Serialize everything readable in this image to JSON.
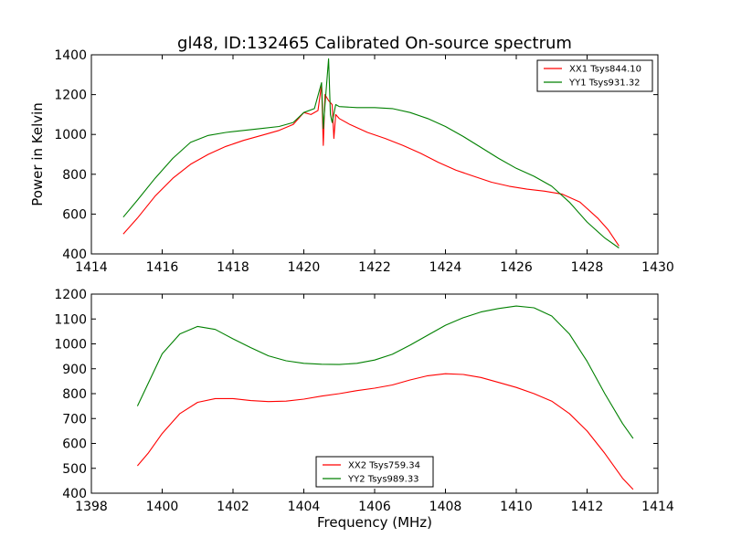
{
  "title": "gl48, ID:132465 Calibrated On-source spectrum",
  "colors": {
    "red": "#ff0000",
    "green": "#008000",
    "axes": "#000000",
    "background": "#ffffff"
  },
  "chart_data": [
    {
      "type": "line",
      "title": "gl48, ID:132465 Calibrated On-source spectrum",
      "xlabel": "",
      "ylabel": "Power in Kelvin",
      "xlim": [
        1414,
        1430
      ],
      "ylim": [
        400,
        1400
      ],
      "x_ticks": [
        1414,
        1416,
        1418,
        1420,
        1422,
        1424,
        1426,
        1428,
        1430
      ],
      "y_ticks": [
        400,
        600,
        800,
        1000,
        1200,
        1400
      ],
      "grid": false,
      "legend_position": "top-right",
      "series": [
        {
          "name": "XX1 Tsys844.10",
          "color": "#ff0000",
          "points": [
            [
              1414.9,
              500
            ],
            [
              1415.3,
              580
            ],
            [
              1415.8,
              690
            ],
            [
              1416.3,
              780
            ],
            [
              1416.8,
              850
            ],
            [
              1417.3,
              900
            ],
            [
              1417.8,
              940
            ],
            [
              1418.3,
              970
            ],
            [
              1418.8,
              995
            ],
            [
              1419.3,
              1020
            ],
            [
              1419.7,
              1050
            ],
            [
              1420.0,
              1110
            ],
            [
              1420.2,
              1100
            ],
            [
              1420.4,
              1120
            ],
            [
              1420.5,
              1250
            ],
            [
              1420.55,
              945
            ],
            [
              1420.6,
              1200
            ],
            [
              1420.7,
              1170
            ],
            [
              1420.8,
              1150
            ],
            [
              1420.85,
              980
            ],
            [
              1420.9,
              1100
            ],
            [
              1421.0,
              1080
            ],
            [
              1421.3,
              1050
            ],
            [
              1421.8,
              1010
            ],
            [
              1422.3,
              980
            ],
            [
              1422.8,
              945
            ],
            [
              1423.3,
              905
            ],
            [
              1423.8,
              860
            ],
            [
              1424.3,
              820
            ],
            [
              1424.8,
              790
            ],
            [
              1425.3,
              760
            ],
            [
              1425.8,
              740
            ],
            [
              1426.3,
              725
            ],
            [
              1426.8,
              715
            ],
            [
              1427.3,
              700
            ],
            [
              1427.8,
              660
            ],
            [
              1428.3,
              580
            ],
            [
              1428.6,
              520
            ],
            [
              1428.9,
              440
            ]
          ]
        },
        {
          "name": "YY1 Tsys931.32",
          "color": "#008000",
          "points": [
            [
              1414.9,
              585
            ],
            [
              1415.3,
              670
            ],
            [
              1415.8,
              780
            ],
            [
              1416.3,
              880
            ],
            [
              1416.8,
              960
            ],
            [
              1417.3,
              995
            ],
            [
              1417.8,
              1010
            ],
            [
              1418.3,
              1020
            ],
            [
              1418.8,
              1030
            ],
            [
              1419.3,
              1040
            ],
            [
              1419.7,
              1060
            ],
            [
              1420.0,
              1110
            ],
            [
              1420.3,
              1130
            ],
            [
              1420.5,
              1260
            ],
            [
              1420.55,
              1030
            ],
            [
              1420.6,
              1150
            ],
            [
              1420.7,
              1380
            ],
            [
              1420.75,
              1100
            ],
            [
              1420.8,
              1060
            ],
            [
              1420.9,
              1150
            ],
            [
              1421.0,
              1140
            ],
            [
              1421.5,
              1135
            ],
            [
              1422.0,
              1135
            ],
            [
              1422.5,
              1130
            ],
            [
              1423.0,
              1110
            ],
            [
              1423.5,
              1080
            ],
            [
              1424.0,
              1040
            ],
            [
              1424.5,
              990
            ],
            [
              1425.0,
              935
            ],
            [
              1425.5,
              880
            ],
            [
              1426.0,
              830
            ],
            [
              1426.5,
              790
            ],
            [
              1427.0,
              740
            ],
            [
              1427.5,
              660
            ],
            [
              1428.0,
              560
            ],
            [
              1428.5,
              480
            ],
            [
              1428.9,
              430
            ]
          ]
        }
      ]
    },
    {
      "type": "line",
      "title": "",
      "xlabel": "Frequency (MHz)",
      "ylabel": "",
      "xlim": [
        1398,
        1414
      ],
      "ylim": [
        400,
        1200
      ],
      "x_ticks": [
        1398,
        1400,
        1402,
        1404,
        1406,
        1408,
        1410,
        1412,
        1414
      ],
      "y_ticks": [
        400,
        500,
        600,
        700,
        800,
        900,
        1000,
        1100,
        1200
      ],
      "grid": false,
      "legend_position": "bottom-center",
      "series": [
        {
          "name": "XX2 Tsys759.34",
          "color": "#ff0000",
          "points": [
            [
              1399.3,
              510
            ],
            [
              1399.6,
              560
            ],
            [
              1400.0,
              640
            ],
            [
              1400.5,
              720
            ],
            [
              1401.0,
              765
            ],
            [
              1401.5,
              780
            ],
            [
              1402.0,
              780
            ],
            [
              1402.5,
              772
            ],
            [
              1403.0,
              768
            ],
            [
              1403.5,
              770
            ],
            [
              1404.0,
              778
            ],
            [
              1404.5,
              790
            ],
            [
              1405.0,
              800
            ],
            [
              1405.5,
              812
            ],
            [
              1406.0,
              822
            ],
            [
              1406.5,
              835
            ],
            [
              1407.0,
              855
            ],
            [
              1407.5,
              872
            ],
            [
              1408.0,
              880
            ],
            [
              1408.5,
              877
            ],
            [
              1409.0,
              865
            ],
            [
              1409.5,
              845
            ],
            [
              1410.0,
              825
            ],
            [
              1410.5,
              800
            ],
            [
              1411.0,
              770
            ],
            [
              1411.5,
              720
            ],
            [
              1412.0,
              650
            ],
            [
              1412.5,
              560
            ],
            [
              1413.0,
              460
            ],
            [
              1413.3,
              415
            ]
          ]
        },
        {
          "name": "YY2 Tsys989.33",
          "color": "#008000",
          "points": [
            [
              1399.3,
              750
            ],
            [
              1399.6,
              840
            ],
            [
              1400.0,
              960
            ],
            [
              1400.5,
              1040
            ],
            [
              1401.0,
              1070
            ],
            [
              1401.5,
              1058
            ],
            [
              1402.0,
              1020
            ],
            [
              1402.5,
              985
            ],
            [
              1403.0,
              952
            ],
            [
              1403.5,
              932
            ],
            [
              1404.0,
              922
            ],
            [
              1404.5,
              918
            ],
            [
              1405.0,
              917
            ],
            [
              1405.5,
              922
            ],
            [
              1406.0,
              935
            ],
            [
              1406.5,
              958
            ],
            [
              1407.0,
              995
            ],
            [
              1407.5,
              1035
            ],
            [
              1408.0,
              1075
            ],
            [
              1408.5,
              1105
            ],
            [
              1409.0,
              1128
            ],
            [
              1409.5,
              1142
            ],
            [
              1410.0,
              1152
            ],
            [
              1410.5,
              1145
            ],
            [
              1411.0,
              1112
            ],
            [
              1411.5,
              1040
            ],
            [
              1412.0,
              930
            ],
            [
              1412.5,
              800
            ],
            [
              1413.0,
              680
            ],
            [
              1413.3,
              620
            ]
          ]
        }
      ]
    }
  ]
}
